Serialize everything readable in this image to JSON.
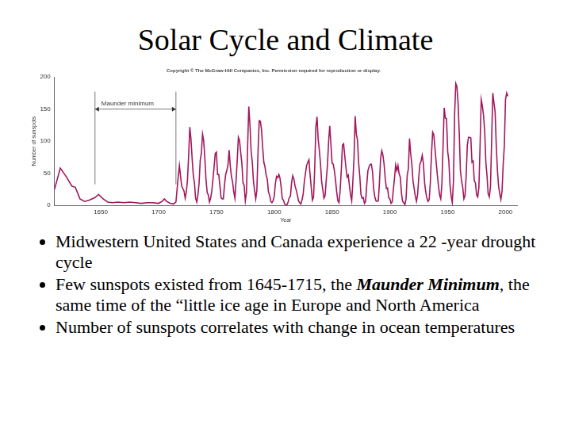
{
  "slide": {
    "title": "Solar Cycle and Climate",
    "bullets": [
      [
        "Midwestern United States and Canada experience a 22 -year drought cycle"
      ],
      [
        "Few sunspots existed from 1645-1715, the ",
        {
          "text": "Maunder Minimum",
          "bold_italic": true
        },
        ", the same time of the “little ice age in Europe and North America"
      ],
      [
        "Number of sunspots correlates with change in ocean temperatures"
      ]
    ]
  },
  "chart_data": {
    "type": "line",
    "title": "Copyright © The McGraw-Hill Companies, Inc. Permission required for reproduction or display.",
    "x_label": "Year",
    "y_label": "Number of sunspots",
    "color": "#a3175d",
    "grid": false,
    "annotations": [
      {
        "text": "Maunder minimum",
        "x": [
          1645,
          1715
        ],
        "y": 150
      }
    ],
    "xlim": [
      1610,
      2010
    ],
    "xticks": [
      1650,
      1700,
      1750,
      1800,
      1850,
      1900,
      1950,
      2000
    ],
    "ylim": [
      0,
      200
    ],
    "yticks": [
      0,
      50,
      100,
      150,
      200
    ],
    "x": [
      1610,
      1615,
      1620,
      1625,
      1628,
      1632,
      1636,
      1640,
      1645,
      1648,
      1652,
      1656,
      1660,
      1665,
      1670,
      1675,
      1680,
      1685,
      1690,
      1695,
      1700,
      1703,
      1705,
      1707,
      1710,
      1713,
      1715,
      1716,
      1717,
      1718,
      1719,
      1720,
      1721,
      1722,
      1723,
      1724,
      1725,
      1726,
      1727,
      1728,
      1729,
      1730,
      1731,
      1732,
      1733,
      1734,
      1735,
      1736,
      1737,
      1738,
      1739,
      1740,
      1741,
      1742,
      1743,
      1744,
      1745,
      1746,
      1747,
      1748,
      1749,
      1750,
      1751,
      1752,
      1753,
      1754,
      1755,
      1756,
      1757,
      1758,
      1759,
      1760,
      1761,
      1762,
      1763,
      1764,
      1765,
      1766,
      1767,
      1768,
      1769,
      1770,
      1771,
      1772,
      1773,
      1774,
      1775,
      1776,
      1777,
      1778,
      1779,
      1780,
      1781,
      1782,
      1783,
      1784,
      1785,
      1786,
      1787,
      1788,
      1789,
      1790,
      1791,
      1792,
      1793,
      1794,
      1795,
      1796,
      1797,
      1798,
      1799,
      1800,
      1801,
      1802,
      1803,
      1804,
      1805,
      1806,
      1807,
      1808,
      1809,
      1810,
      1811,
      1812,
      1813,
      1814,
      1815,
      1816,
      1817,
      1818,
      1819,
      1820,
      1821,
      1822,
      1823,
      1824,
      1825,
      1826,
      1827,
      1828,
      1829,
      1830,
      1831,
      1832,
      1833,
      1834,
      1835,
      1836,
      1837,
      1838,
      1839,
      1840,
      1841,
      1842,
      1843,
      1844,
      1845,
      1846,
      1847,
      1848,
      1849,
      1850,
      1851,
      1852,
      1853,
      1854,
      1855,
      1856,
      1857,
      1858,
      1859,
      1860,
      1861,
      1862,
      1863,
      1864,
      1865,
      1866,
      1867,
      1868,
      1869,
      1870,
      1871,
      1872,
      1873,
      1874,
      1875,
      1876,
      1877,
      1878,
      1879,
      1880,
      1881,
      1882,
      1883,
      1884,
      1885,
      1886,
      1887,
      1888,
      1889,
      1890,
      1891,
      1892,
      1893,
      1894,
      1895,
      1896,
      1897,
      1898,
      1899,
      1900,
      1901,
      1902,
      1903,
      1904,
      1905,
      1906,
      1907,
      1908,
      1909,
      1910,
      1911,
      1912,
      1913,
      1914,
      1915,
      1916,
      1917,
      1918,
      1919,
      1920,
      1921,
      1922,
      1923,
      1924,
      1925,
      1926,
      1927,
      1928,
      1929,
      1930,
      1931,
      1932,
      1933,
      1934,
      1935,
      1936,
      1937,
      1938,
      1939,
      1940,
      1941,
      1942,
      1943,
      1944,
      1945,
      1946,
      1947,
      1948,
      1949,
      1950,
      1951,
      1952,
      1953,
      1954,
      1955,
      1956,
      1957,
      1958,
      1959,
      1960,
      1961,
      1962,
      1963,
      1964,
      1965,
      1966,
      1967,
      1968,
      1969,
      1970,
      1971,
      1972,
      1973,
      1974,
      1975,
      1976,
      1977,
      1978,
      1979,
      1980,
      1981,
      1982,
      1983,
      1984,
      1985,
      1986,
      1987,
      1988,
      1989,
      1990,
      1991,
      1992,
      1993,
      1994,
      1995,
      1996,
      1997,
      1998,
      1999,
      2000,
      2001,
      2002
    ],
    "values": [
      25,
      58,
      45,
      30,
      28,
      10,
      6,
      8,
      12,
      17,
      10,
      5,
      4,
      5,
      4,
      5,
      4,
      3,
      4,
      4,
      3,
      6,
      10,
      6,
      3,
      2,
      5,
      25,
      45,
      62,
      45,
      30,
      26,
      22,
      11,
      21,
      40,
      78,
      122,
      103,
      73,
      47,
      35,
      11,
      5,
      16,
      34,
      70,
      81,
      111,
      101,
      73,
      40,
      20,
      16,
      5,
      11,
      22,
      40,
      60,
      81,
      83,
      48,
      48,
      31,
      12,
      10,
      10,
      32,
      48,
      54,
      63,
      86,
      61,
      45,
      36,
      21,
      11,
      38,
      70,
      106,
      101,
      82,
      66,
      35,
      31,
      7,
      20,
      92,
      154,
      126,
      85,
      68,
      38,
      23,
      10,
      24,
      83,
      132,
      131,
      118,
      90,
      67,
      60,
      47,
      41,
      21,
      16,
      6,
      4,
      7,
      14,
      34,
      45,
      43,
      48,
      42,
      28,
      10,
      8,
      2,
      0,
      1,
      5,
      12,
      14,
      35,
      46,
      41,
      30,
      24,
      16,
      7,
      4,
      2,
      8,
      17,
      36,
      50,
      62,
      67,
      71,
      48,
      28,
      8,
      13,
      57,
      122,
      138,
      103,
      86,
      65,
      37,
      24,
      11,
      15,
      40,
      62,
      98,
      124,
      96,
      66,
      64,
      54,
      39,
      21,
      7,
      4,
      23,
      55,
      94,
      96,
      77,
      59,
      44,
      47,
      31,
      16,
      7,
      37,
      74,
      139,
      111,
      102,
      66,
      45,
      17,
      11,
      12,
      3,
      6,
      32,
      54,
      60,
      64,
      64,
      52,
      25,
      13,
      7,
      6,
      7,
      36,
      73,
      85,
      78,
      64,
      42,
      26,
      27,
      12,
      10,
      3,
      5,
      24,
      42,
      63,
      54,
      62,
      49,
      44,
      19,
      6,
      4,
      1,
      10,
      47,
      57,
      104,
      81,
      64,
      38,
      26,
      14,
      6,
      17,
      44,
      64,
      69,
      78,
      65,
      36,
      21,
      11,
      6,
      9,
      36,
      80,
      114,
      110,
      89,
      68,
      48,
      31,
      16,
      10,
      33,
      93,
      152,
      136,
      135,
      84,
      69,
      32,
      14,
      4,
      38,
      142,
      190,
      185,
      159,
      112,
      54,
      38,
      28,
      10,
      15,
      47,
      94,
      106,
      106,
      105,
      67,
      69,
      38,
      35,
      16,
      13,
      28,
      93,
      165,
      155,
      140,
      116,
      67,
      46,
      18,
      13,
      29,
      100,
      175,
      160,
      146,
      94,
      55,
      30,
      18,
      9,
      22,
      64,
      93,
      165,
      175,
      170
    ]
  }
}
